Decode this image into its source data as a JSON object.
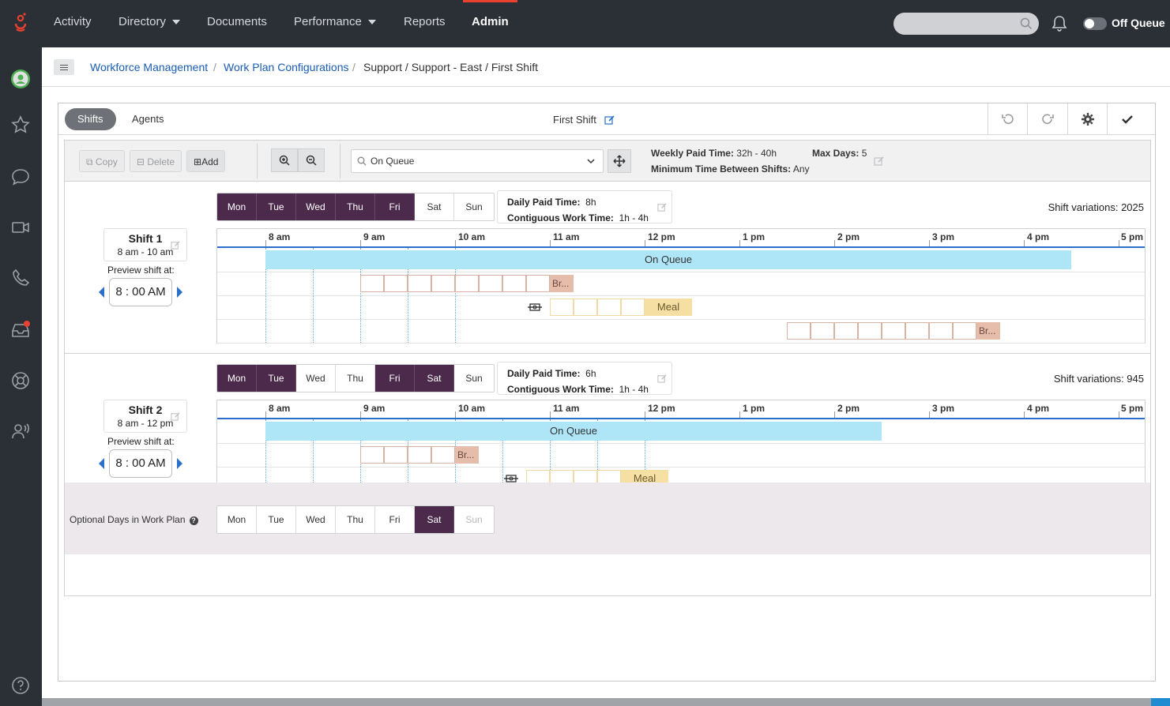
{
  "nav": {
    "activity": "Activity",
    "directory": "Directory",
    "documents": "Documents",
    "performance": "Performance",
    "reports": "Reports",
    "admin": "Admin",
    "status": "Off Queue"
  },
  "breadcrumb": {
    "wfm": "Workforce Management",
    "wpc": "Work Plan Configurations",
    "current": "Support / Support - East / First Shift",
    "sep": "/"
  },
  "tabs": {
    "shifts": "Shifts",
    "agents": "Agents"
  },
  "plan_title": "First Shift",
  "toolbar": {
    "copy": "Copy",
    "delete": "Delete",
    "add": "Add",
    "activity_select": "On Queue"
  },
  "weekly": {
    "paid_label": "Weekly Paid Time:",
    "paid_value": "32h - 40h",
    "maxdays_label": "Max Days:",
    "maxdays_value": "5",
    "minbetween_label": "Minimum Time Between Shifts:",
    "minbetween_value": "Any"
  },
  "timeline_ticks": [
    "8 am",
    "9 am",
    "10 am",
    "11 am",
    "12 pm",
    "1 pm",
    "2 pm",
    "3 pm",
    "4 pm",
    "5 pm"
  ],
  "day_labels": [
    "Mon",
    "Tue",
    "Wed",
    "Thu",
    "Fri",
    "Sat",
    "Sun"
  ],
  "shifts": [
    {
      "name": "Shift 1",
      "range": "8 am - 10 am",
      "preview_label": "Preview shift at:",
      "preview_time": "8 : 00  AM",
      "days_on": [
        true,
        true,
        true,
        true,
        true,
        false,
        false
      ],
      "daily_paid_label": "Daily Paid Time:",
      "daily_paid_value": "8h",
      "contig_label": "Contiguous Work Time:",
      "contig_value": "1h - 4h",
      "variations": "Shift variations: 2025",
      "queue_label": "On Queue",
      "break_label": "Br...",
      "meal_label": "Meal"
    },
    {
      "name": "Shift 2",
      "range": "8 am - 12 pm",
      "preview_label": "Preview shift at:",
      "preview_time": "8 : 00  AM",
      "days_on": [
        true,
        true,
        false,
        false,
        true,
        true,
        false
      ],
      "daily_paid_label": "Daily Paid Time:",
      "daily_paid_value": "6h",
      "contig_label": "Contiguous Work Time:",
      "contig_value": "1h - 4h",
      "variations": "Shift variations: 945",
      "queue_label": "On Queue",
      "break_label": "Br...",
      "meal_label": "Meal"
    }
  ],
  "optional_days": {
    "label": "Optional Days in Work Plan",
    "selected": "Sat",
    "disabled": "Sun"
  },
  "colors": {
    "day_active": "#4c2a4b",
    "on_queue": "#aee6f8",
    "break": "#e6bcaa",
    "meal": "#f6dfa3",
    "accent": "#e8412e",
    "link": "#1a5db4"
  }
}
